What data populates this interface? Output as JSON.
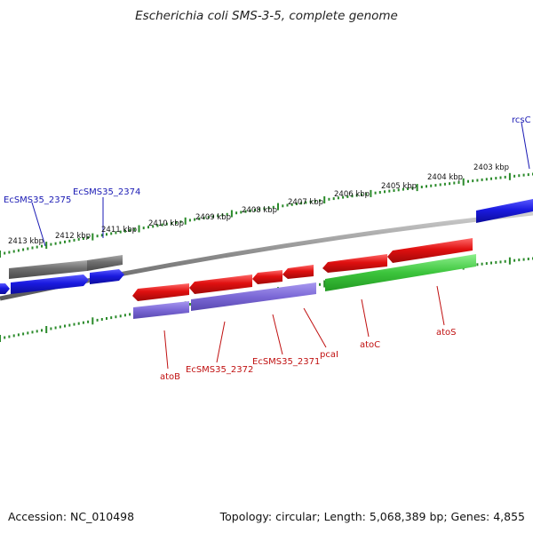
{
  "title": "Escherichia coli SMS-3-5, complete genome",
  "accession_text": "Accession: NC_010498",
  "summary_text": "Topology: circular; Length: 5,068,389 bp; Genes: 4,855",
  "axis_labels": [
    "2403 kbp",
    "2404 kbp",
    "2405 kbp",
    "2406 kbp",
    "2407 kbp",
    "2408 kbp",
    "2409 kbp",
    "2410 kbp",
    "2411 kbp",
    "2412 kbp",
    "2413 kbp"
  ],
  "gene_labels": [
    {
      "name": "rcsC",
      "strand": "forward"
    },
    {
      "name": "EcSMS35_2374",
      "strand": "forward"
    },
    {
      "name": "EcSMS35_2375",
      "strand": "forward"
    },
    {
      "name": "atoB",
      "strand": "reverse"
    },
    {
      "name": "EcSMS35_2372",
      "strand": "reverse"
    },
    {
      "name": "EcSMS35_2371",
      "strand": "reverse"
    },
    {
      "name": "pcaI",
      "strand": "reverse"
    },
    {
      "name": "atoC",
      "strand": "reverse"
    },
    {
      "name": "atoS",
      "strand": "reverse"
    }
  ],
  "colors": {
    "forward_gene": "#1a1ae0",
    "forward_label": "#1a1ab4",
    "reverse_gene": "#e01010",
    "reverse_label": "#c01010",
    "gene_group_gray": "#6e6e6e",
    "operon_purple": "#7b68d6",
    "operon_green": "#3cc43c",
    "backbone": "#8a8a8a",
    "tick": "#2a8a2a"
  }
}
